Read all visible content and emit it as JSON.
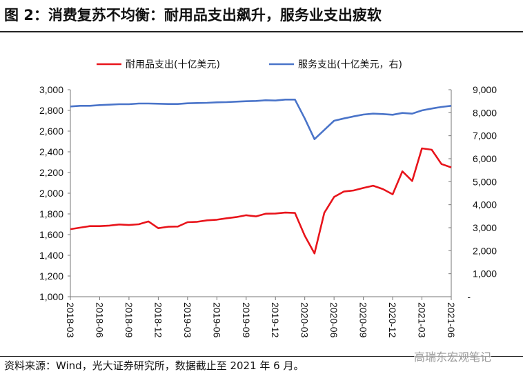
{
  "title": "图 2：消费复苏不均衡：耐用品支出飙升，服务业支出疲软",
  "source": "资料来源：Wind，光大证券研究所，数据截止至 2021 年 6 月。",
  "watermark": "高瑞东宏观笔记",
  "chart_data": {
    "type": "line",
    "title": "图 2：消费复苏不均衡：耐用品支出飙升，服务业支出疲软",
    "legend_position": "top",
    "x": [
      "2018-03",
      "2018-04",
      "2018-05",
      "2018-06",
      "2018-07",
      "2018-08",
      "2018-09",
      "2018-10",
      "2018-11",
      "2018-12",
      "2019-01",
      "2019-02",
      "2019-03",
      "2019-04",
      "2019-05",
      "2019-06",
      "2019-07",
      "2019-08",
      "2019-09",
      "2019-10",
      "2019-11",
      "2019-12",
      "2020-01",
      "2020-02",
      "2020-03",
      "2020-04",
      "2020-05",
      "2020-06",
      "2020-07",
      "2020-08",
      "2020-09",
      "2020-10",
      "2020-11",
      "2020-12",
      "2021-01",
      "2021-02",
      "2021-03",
      "2021-04",
      "2021-05",
      "2021-06"
    ],
    "x_tick_labels": [
      "2018-03",
      "2018-06",
      "2018-09",
      "2018-12",
      "2019-03",
      "2019-06",
      "2019-09",
      "2019-12",
      "2020-03",
      "2020-06",
      "2020-09",
      "2020-12",
      "2021-03",
      "2021-06"
    ],
    "y_left": {
      "range": [
        1000,
        3000
      ],
      "ticks": [
        "1,000",
        "1,200",
        "1,400",
        "1,600",
        "1,800",
        "2,000",
        "2,200",
        "2,400",
        "2,600",
        "2,800",
        "3,000"
      ]
    },
    "y_right": {
      "range": [
        0,
        9000
      ],
      "ticks": [
        "-",
        "1,000",
        "2,000",
        "3,000",
        "4,000",
        "5,000",
        "6,000",
        "7,000",
        "8,000",
        "9,000"
      ]
    },
    "grid": false,
    "series": [
      {
        "name": "耐用品支出(十亿美元)",
        "axis": "left",
        "color": "#e8141b",
        "values": [
          1653,
          1667,
          1682,
          1682,
          1687,
          1698,
          1693,
          1700,
          1727,
          1662,
          1676,
          1678,
          1720,
          1724,
          1738,
          1744,
          1758,
          1769,
          1787,
          1776,
          1802,
          1804,
          1813,
          1809,
          1589,
          1418,
          1811,
          1964,
          2016,
          2027,
          2051,
          2073,
          2040,
          1989,
          2211,
          2118,
          2433,
          2420,
          2282,
          2249
        ]
      },
      {
        "name": "服务支出(十亿美元，右)",
        "axis": "right",
        "color": "#4a74c9",
        "values": [
          8270,
          8300,
          8300,
          8330,
          8350,
          8370,
          8370,
          8400,
          8400,
          8390,
          8380,
          8380,
          8410,
          8420,
          8430,
          8450,
          8460,
          8480,
          8500,
          8510,
          8540,
          8530,
          8570,
          8570,
          7750,
          6850,
          7250,
          7650,
          7750,
          7840,
          7920,
          7960,
          7940,
          7910,
          7990,
          7960,
          8100,
          8180,
          8250,
          8300
        ]
      }
    ]
  }
}
